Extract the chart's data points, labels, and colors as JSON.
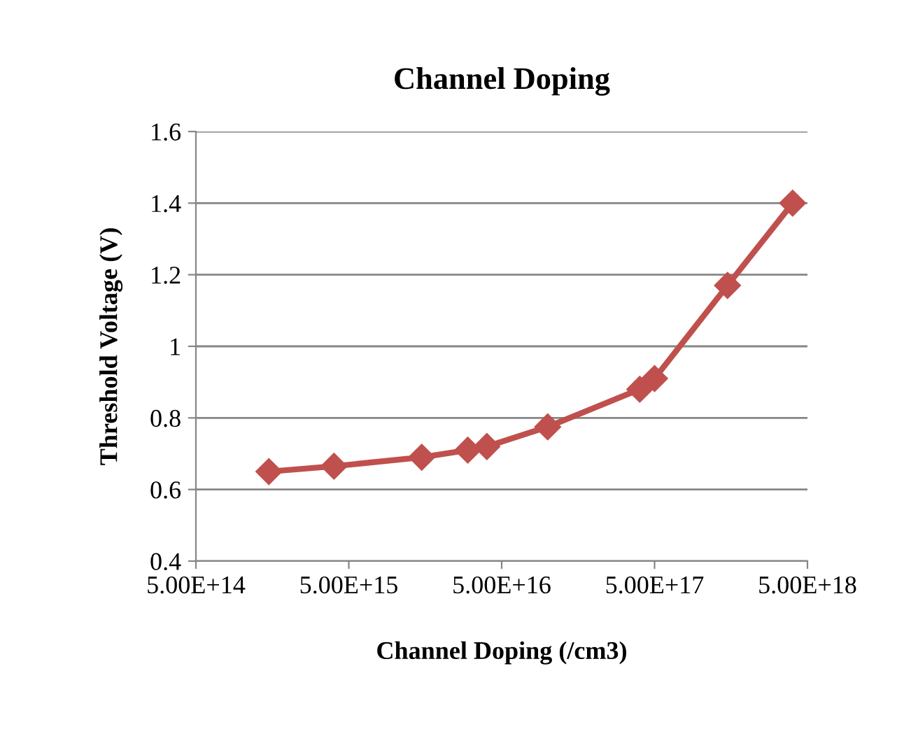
{
  "chart_data": {
    "type": "line",
    "title": "Channel Doping",
    "xlabel": "Channel Doping (/cm3)",
    "ylabel": "Threshold Voltage (V)",
    "log": "x",
    "x": [
      1500000000000000.0,
      4000000000000000.0,
      1.5e+16,
      3e+16,
      4e+16,
      1e+17,
      4e+17,
      5e+17,
      1.5e+18,
      4e+18
    ],
    "series": [
      {
        "color": "#c0504d",
        "values": [
          0.65,
          0.665,
          0.69,
          0.71,
          0.72,
          0.775,
          0.88,
          0.91,
          1.17,
          1.4
        ]
      }
    ],
    "xlim": [
      500000000000000.0,
      5e+18
    ],
    "xticks": [
      {
        "value": 500000000000000.0,
        "label": "5.00E+14"
      },
      {
        "value": 5000000000000000.0,
        "label": "5.00E+15"
      },
      {
        "value": 5e+16,
        "label": "5.00E+16"
      },
      {
        "value": 5e+17,
        "label": "5.00E+17"
      },
      {
        "value": 5e+18,
        "label": "5.00E+18"
      }
    ],
    "ylim": [
      0.4,
      1.6
    ],
    "yticks": [
      0.4,
      0.6,
      0.8,
      1,
      1.2,
      1.4,
      1.6
    ],
    "grid": "y",
    "marker": "diamond",
    "line_style": "solid",
    "legend": false
  }
}
